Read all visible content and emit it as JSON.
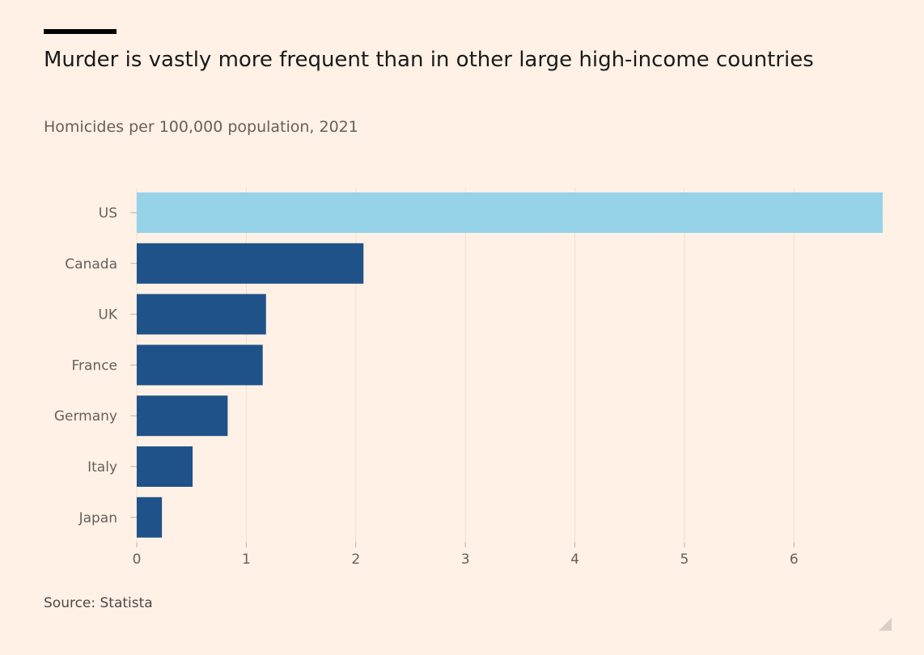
{
  "header": {
    "title": "Murder is vastly more frequent than in other large high-income countries",
    "subtitle": "Homicides per 100,000 population, 2021"
  },
  "footer": {
    "source": "Source: Statista"
  },
  "colors": {
    "highlight": "#96d2e8",
    "bar": "#1f5289",
    "grid": "#e9e1d9",
    "text": "#66605c"
  },
  "chart_data": {
    "type": "bar",
    "orientation": "horizontal",
    "categories": [
      "US",
      "Canada",
      "UK",
      "France",
      "Germany",
      "Italy",
      "Japan"
    ],
    "values": [
      6.81,
      2.07,
      1.18,
      1.15,
      0.83,
      0.51,
      0.23
    ],
    "highlight": "US",
    "xticks": [
      0,
      1,
      2,
      3,
      4,
      5,
      6
    ],
    "xlim": [
      0,
      6.81
    ],
    "grid": true
  }
}
